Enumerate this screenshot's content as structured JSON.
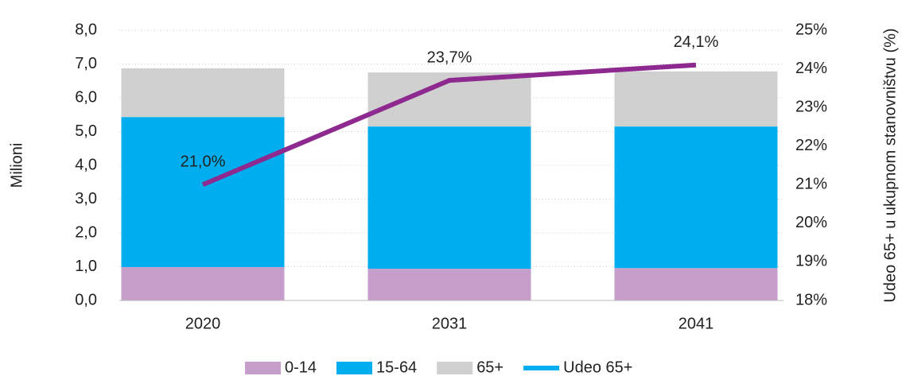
{
  "chart_data": {
    "type": "bar",
    "categories": [
      "2020",
      "2031",
      "2041"
    ],
    "stacked": true,
    "series": [
      {
        "name": "0-14",
        "color": "#c59ec9",
        "values": [
          0.99,
          0.94,
          0.96
        ]
      },
      {
        "name": "15-64",
        "color": "#00aeef",
        "values": [
          4.44,
          4.21,
          4.19
        ]
      },
      {
        "name": "65+",
        "color": "#d0d0d0",
        "values": [
          1.44,
          1.6,
          1.63
        ]
      },
      {
        "name": "Udeo 65+",
        "type": "line",
        "axis": "y2",
        "color": "#8e2a8f",
        "legend_color": "#00aeef",
        "values": [
          21.0,
          23.7,
          24.1
        ],
        "value_labels": [
          "21,0%",
          "23,7%",
          "24,1%"
        ]
      }
    ],
    "ylabel": "Milioni",
    "y2label": "Udeo 65+ u ukupnom stanovništvu (%)",
    "ylim": [
      0,
      8
    ],
    "yticks": [
      {
        "value": 0,
        "label": "0,0"
      },
      {
        "value": 1,
        "label": "1,0"
      },
      {
        "value": 2,
        "label": "2,0"
      },
      {
        "value": 3,
        "label": "3,0"
      },
      {
        "value": 4,
        "label": "4,0"
      },
      {
        "value": 5,
        "label": "5,0"
      },
      {
        "value": 6,
        "label": "6,0"
      },
      {
        "value": 7,
        "label": "7,0"
      },
      {
        "value": 8,
        "label": "8,0"
      }
    ],
    "y2lim": [
      18,
      25
    ],
    "y2ticks": [
      {
        "value": 18,
        "label": "18%"
      },
      {
        "value": 19,
        "label": "19%"
      },
      {
        "value": 20,
        "label": "20%"
      },
      {
        "value": 21,
        "label": "21%"
      },
      {
        "value": 22,
        "label": "22%"
      },
      {
        "value": 23,
        "label": "23%"
      },
      {
        "value": 24,
        "label": "24%"
      },
      {
        "value": 25,
        "label": "25%"
      }
    ],
    "grid": true,
    "legend": "bottom"
  }
}
